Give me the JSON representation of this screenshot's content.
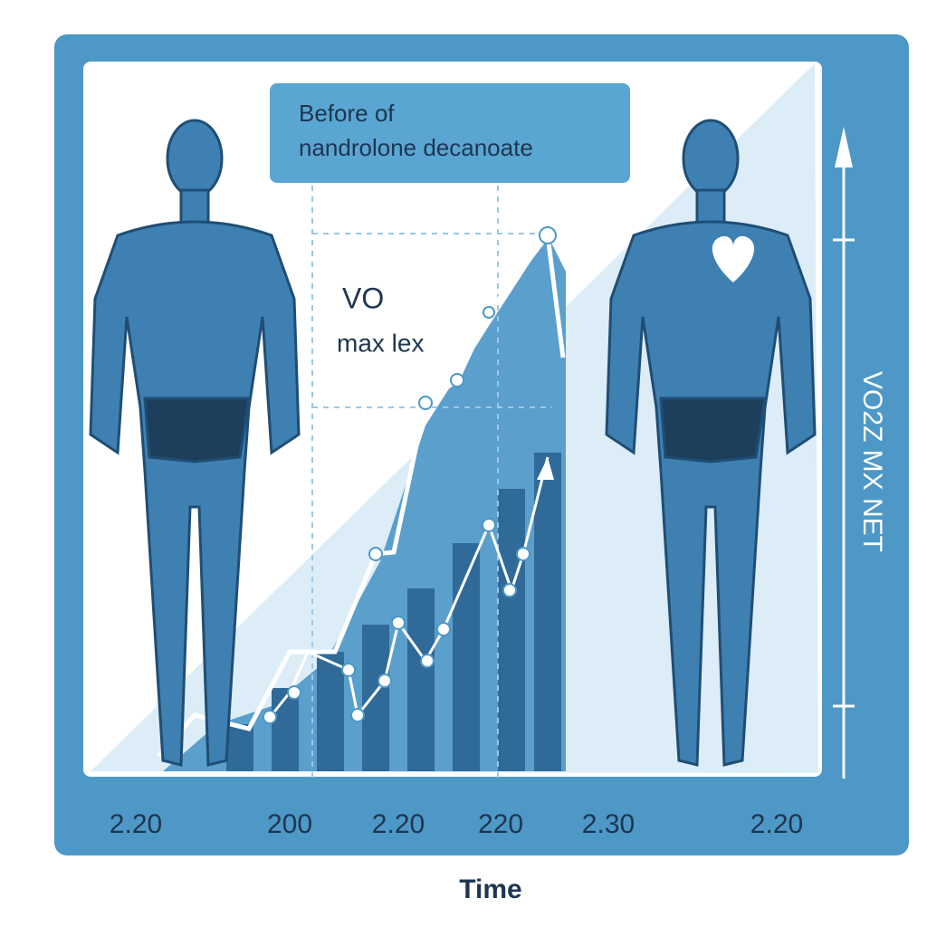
{
  "callout": {
    "lines": [
      "Before of",
      "nandrolone decanoate"
    ]
  },
  "inner_labels": [
    "VO",
    "max lex"
  ],
  "vertical_label": "VO2Z MX NET",
  "x_labels": [
    "2.20",
    "200",
    "2.20",
    "220",
    "2.30",
    "2.20"
  ],
  "x_title": "Time"
}
